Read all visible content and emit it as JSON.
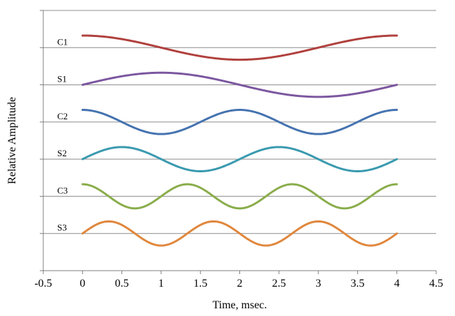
{
  "chart_data": {
    "type": "line",
    "title": "",
    "xlabel": "Time, msec.",
    "ylabel": "Relative Amplitude",
    "xlim": [
      -0.5,
      4.5
    ],
    "xticks": [
      -0.5,
      0,
      0.5,
      1,
      1.5,
      2,
      2.5,
      3,
      3.5,
      4,
      4.5
    ],
    "x_tick_labels": [
      "-0.5",
      "0",
      "0.5",
      "1",
      "1.5",
      "2",
      "2.5",
      "3",
      "3.5",
      "4",
      "4.5"
    ],
    "ylim": [
      0,
      14
    ],
    "yticks": [
      0,
      2,
      4,
      6,
      8,
      10,
      12,
      14
    ],
    "y_tick_labels_shown": false,
    "grid": "horizontal",
    "legend": "none",
    "series": [
      {
        "name": "C1",
        "label_y": 12,
        "function": "cos",
        "harmonic": 1,
        "amplitude": 0.65,
        "baseline": 12,
        "color": "#b0413e",
        "x_range": [
          0,
          4
        ],
        "period_ms": 4
      },
      {
        "name": "S1",
        "label_y": 10,
        "function": "sin",
        "harmonic": 1,
        "amplitude": 0.65,
        "baseline": 10,
        "color": "#7c57a0",
        "x_range": [
          0,
          4
        ],
        "period_ms": 4
      },
      {
        "name": "C2",
        "label_y": 8,
        "function": "cos",
        "harmonic": 2,
        "amplitude": 0.65,
        "baseline": 8,
        "color": "#4573b0",
        "x_range": [
          0,
          4
        ],
        "period_ms": 2
      },
      {
        "name": "S2",
        "label_y": 6,
        "function": "sin",
        "harmonic": 2,
        "amplitude": 0.65,
        "baseline": 6,
        "color": "#3a9aaf",
        "x_range": [
          0,
          4
        ],
        "period_ms": 2
      },
      {
        "name": "C3",
        "label_y": 4,
        "function": "cos",
        "harmonic": 3,
        "amplitude": 0.65,
        "baseline": 4,
        "color": "#8aad4b",
        "x_range": [
          0,
          4
        ],
        "period_ms": 1.3333
      },
      {
        "name": "S3",
        "label_y": 2,
        "function": "sin",
        "harmonic": 3,
        "amplitude": 0.65,
        "baseline": 2,
        "color": "#e0873d",
        "x_range": [
          0,
          4
        ],
        "period_ms": 1.3333
      }
    ]
  }
}
